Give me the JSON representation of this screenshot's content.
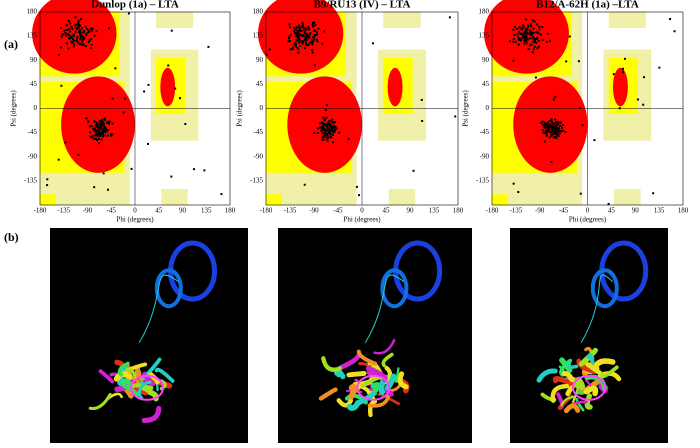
{
  "figure": {
    "panel_labels": [
      "(a)",
      "(b)"
    ],
    "x_axis_label": "Phi (degrees)",
    "y_axis_label": "Psi (degrees)",
    "x_ticks": [
      -180,
      -135,
      -90,
      -45,
      0,
      45,
      90,
      135,
      180
    ],
    "y_ticks": [
      180,
      135,
      90,
      45,
      0,
      -45,
      -90,
      -135
    ],
    "plots": [
      {
        "title": "Dunlop (1a) – LTA"
      },
      {
        "title": "B9/RU13 (IV) – LTA"
      },
      {
        "title": "B12/A-62H (1a) –LTA"
      }
    ]
  }
}
